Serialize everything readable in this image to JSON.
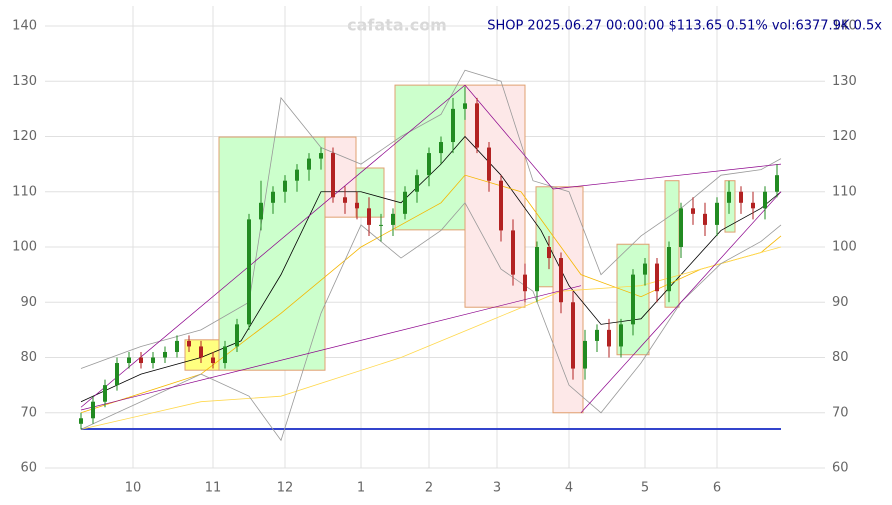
{
  "chart_data": {
    "type": "candlestick",
    "title": "SHOP 2025.06.27 00:00:00 $113.65 0.51% vol:6377.9K 0.5x",
    "watermark": "cafata.com",
    "xlim": [
      -9,
      186
    ],
    "ylim": [
      60,
      140
    ],
    "yticks": [
      60,
      70,
      80,
      90,
      100,
      110,
      120,
      130,
      140
    ],
    "xticks": [
      {
        "value": 13,
        "label": "10"
      },
      {
        "value": 33,
        "label": "11"
      },
      {
        "value": 51,
        "label": "12"
      },
      {
        "value": 70,
        "label": "1"
      },
      {
        "value": 87,
        "label": "2"
      },
      {
        "value": 104,
        "label": "3"
      },
      {
        "value": 122,
        "label": "4"
      },
      {
        "value": 141,
        "label": "5"
      },
      {
        "value": 159,
        "label": "6"
      }
    ],
    "grid": true,
    "x": [
      0,
      3,
      6,
      9,
      12,
      15,
      18,
      21,
      24,
      27,
      30,
      33,
      36,
      39,
      42,
      45,
      48,
      51,
      54,
      57,
      60,
      63,
      66,
      69,
      72,
      75,
      78,
      81,
      84,
      87,
      90,
      93,
      96,
      99,
      102,
      105,
      108,
      111,
      114,
      117,
      120,
      123,
      126,
      129,
      132,
      135,
      138,
      141,
      144,
      147,
      150,
      153,
      156,
      159,
      162,
      165,
      168,
      171,
      174
    ],
    "open": [
      68,
      69,
      72,
      75,
      79,
      80,
      79,
      80,
      81,
      83,
      82,
      80,
      79,
      82,
      86,
      105,
      108,
      110,
      112,
      114,
      116,
      117,
      109,
      108,
      107,
      104,
      104,
      106,
      110,
      113,
      117,
      119,
      125,
      126,
      118,
      112,
      103,
      95,
      92,
      100,
      98,
      90,
      78,
      83,
      85,
      82,
      86,
      95,
      97,
      92,
      100,
      107,
      106,
      104,
      108,
      110,
      108,
      107,
      110
    ],
    "high": [
      70,
      73,
      76,
      80,
      81,
      81,
      81,
      82,
      84,
      84,
      83,
      81,
      83,
      87,
      106,
      112,
      111,
      113,
      115,
      117,
      118,
      118,
      111,
      110,
      109,
      106,
      107,
      111,
      114,
      118,
      120,
      127,
      129,
      127,
      119,
      113,
      105,
      97,
      101,
      102,
      99,
      92,
      85,
      86,
      87,
      87,
      96,
      98,
      98,
      101,
      108,
      109,
      108,
      109,
      112,
      111,
      110,
      111,
      115
    ],
    "low": [
      67,
      68,
      71,
      74,
      78,
      78,
      78,
      79,
      80,
      81,
      79,
      78,
      78,
      81,
      85,
      103,
      106,
      108,
      110,
      112,
      114,
      108,
      106,
      105,
      102,
      101,
      102,
      105,
      108,
      111,
      115,
      117,
      123,
      117,
      110,
      101,
      93,
      90,
      90,
      96,
      88,
      76,
      76,
      81,
      80,
      80,
      84,
      93,
      90,
      90,
      98,
      104,
      102,
      102,
      106,
      106,
      105,
      105,
      109
    ],
    "close": [
      69,
      72,
      75,
      79,
      80,
      79,
      80,
      81,
      83,
      82,
      80,
      79,
      82,
      86,
      105,
      108,
      110,
      112,
      114,
      116,
      117,
      109,
      108,
      107,
      104,
      104,
      106,
      110,
      113,
      117,
      119,
      125,
      126,
      118,
      112,
      103,
      95,
      92,
      100,
      98,
      90,
      78,
      83,
      85,
      82,
      86,
      95,
      97,
      92,
      100,
      107,
      106,
      104,
      108,
      110,
      108,
      107,
      110,
      113
    ],
    "lines": [
      {
        "color": "#000000",
        "x": [
          0,
          15,
          30,
          40,
          50,
          60,
          70,
          80,
          90,
          96,
          105,
          115,
          122,
          130,
          140,
          150,
          160,
          170,
          175
        ],
        "values": [
          72,
          77,
          80,
          83,
          95,
          110,
          110,
          108,
          115,
          120,
          113,
          103,
          93,
          86,
          87,
          95,
          103,
          107,
          110
        ]
      },
      {
        "color": "#f5b700",
        "x": [
          0,
          30,
          50,
          70,
          90,
          96,
          110,
          125,
          140,
          155,
          170,
          175
        ],
        "values": [
          70,
          77,
          88,
          100,
          108,
          113,
          110,
          95,
          91,
          96,
          99,
          102
        ]
      },
      {
        "color": "#ffd84d",
        "x": [
          0,
          30,
          50,
          80,
          100,
          120,
          140,
          160,
          175
        ],
        "values": [
          67,
          72,
          73,
          80,
          86,
          92,
          93,
          97,
          100
        ]
      },
      {
        "color": "#999999",
        "x": [
          0,
          15,
          30,
          42,
          50,
          60,
          70,
          80,
          90,
          96,
          105,
          113,
          122,
          130,
          140,
          150,
          160,
          170,
          175
        ],
        "values": [
          78,
          82,
          85,
          90,
          127,
          118,
          115,
          120,
          124,
          132,
          130,
          112,
          110,
          95,
          102,
          107,
          113,
          114,
          116
        ]
      },
      {
        "color": "#999999",
        "x": [
          0,
          15,
          30,
          42,
          50,
          60,
          70,
          80,
          90,
          96,
          105,
          113,
          122,
          130,
          140,
          150,
          160,
          170,
          175
        ],
        "values": [
          67,
          72,
          77,
          73,
          65,
          88,
          104,
          98,
          103,
          108,
          96,
          92,
          75,
          70,
          79,
          90,
          97,
          101,
          104
        ]
      }
    ],
    "trendlines": [
      [
        0,
        71,
        96,
        129.3
      ],
      [
        96,
        129.3,
        118,
        110.5
      ],
      [
        118,
        110.5,
        175,
        115
      ],
      [
        0,
        70.5,
        125,
        93
      ],
      [
        125,
        70,
        175,
        110
      ]
    ],
    "zones": [
      {
        "x": [
          26,
          34.5
        ],
        "y": [
          77.7,
          83.2
        ],
        "color": "#ffff80"
      },
      {
        "x": [
          34.5,
          61
        ],
        "y": [
          77.7,
          119.9
        ],
        "color": "#ccffcc"
      },
      {
        "x": [
          61,
          68.75
        ],
        "y": [
          105.4,
          119.9
        ],
        "color": "#fde8e8"
      },
      {
        "x": [
          68.75,
          75.75
        ],
        "y": [
          105.4,
          114.3
        ],
        "color": "#ccffcc"
      },
      {
        "x": [
          78.5,
          96
        ],
        "y": [
          103.1,
          129.3
        ],
        "color": "#ccffcc"
      },
      {
        "x": [
          96,
          111
        ],
        "y": [
          89.1,
          129.3
        ],
        "color": "#fde8e8"
      },
      {
        "x": [
          113.75,
          118
        ],
        "y": [
          92.8,
          110.9
        ],
        "color": "#ccffcc"
      },
      {
        "x": [
          118,
          125.5
        ],
        "y": [
          70,
          110.9
        ],
        "color": "#fde8e8"
      },
      {
        "x": [
          134,
          142
        ],
        "y": [
          80.5,
          100.5
        ],
        "color": "#ccffcc"
      },
      {
        "x": [
          146,
          149.5
        ],
        "y": [
          89.1,
          112
        ],
        "color": "#ccffcc"
      },
      {
        "x": [
          161,
          163.5
        ],
        "y": [
          102.7,
          112
        ],
        "color": "#ccffcc"
      }
    ]
  }
}
